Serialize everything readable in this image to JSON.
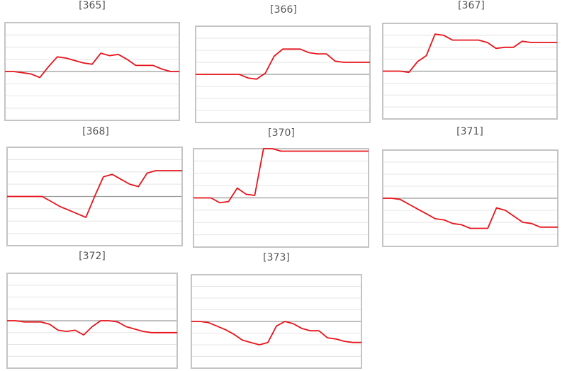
{
  "chart_data": [
    {
      "type": "line",
      "title": "[365]",
      "x": [
        0,
        1,
        2,
        3,
        4,
        5,
        6,
        7,
        8,
        9,
        10,
        11,
        12,
        13,
        14,
        15,
        16,
        17,
        18,
        19,
        20
      ],
      "xlim": [
        0,
        20
      ],
      "ylim": [
        -4,
        4
      ],
      "yticks": [
        -3,
        -2,
        -1,
        0,
        1,
        2,
        3
      ],
      "grid": true,
      "color": "#e8141b",
      "values": [
        0,
        0,
        -0.1,
        -0.2,
        -0.5,
        0.4,
        1.2,
        1.1,
        0.9,
        0.7,
        0.6,
        1.5,
        1.3,
        1.4,
        1,
        0.5,
        0.5,
        0.5,
        0.2,
        0,
        0
      ]
    },
    {
      "type": "line",
      "title": "[366]",
      "x": [
        0,
        1,
        2,
        3,
        4,
        5,
        6,
        7,
        8,
        9,
        10,
        11,
        12,
        13,
        14,
        15,
        16,
        17,
        18,
        19,
        20
      ],
      "xlim": [
        0,
        20
      ],
      "ylim": [
        -4,
        4
      ],
      "yticks": [
        -3,
        -2,
        -1,
        0,
        1,
        2,
        3
      ],
      "grid": true,
      "color": "#e8141b",
      "values": [
        0,
        0,
        0,
        0,
        0,
        0,
        -0.3,
        -0.4,
        0.1,
        1.5,
        2.1,
        2.1,
        2.1,
        1.8,
        1.7,
        1.7,
        1.1,
        1.0,
        1.0,
        1.0,
        1.0
      ]
    },
    {
      "type": "line",
      "title": "[367]",
      "x": [
        0,
        1,
        2,
        3,
        4,
        5,
        6,
        7,
        8,
        9,
        10,
        11,
        12,
        13,
        14,
        15,
        16,
        17,
        18,
        19,
        20
      ],
      "xlim": [
        0,
        20
      ],
      "ylim": [
        -4,
        4
      ],
      "yticks": [
        -3,
        -2,
        -1,
        0,
        1,
        2,
        3
      ],
      "grid": true,
      "color": "#e8141b",
      "values": [
        0,
        0,
        0,
        -0.1,
        0.8,
        1.3,
        3.1,
        3.0,
        2.6,
        2.6,
        2.6,
        2.6,
        2.4,
        1.9,
        2.0,
        2.0,
        2.5,
        2.4,
        2.4,
        2.4,
        2.4
      ]
    },
    {
      "type": "line",
      "title": "[368]",
      "x": [
        0,
        1,
        2,
        3,
        4,
        5,
        6,
        7,
        8,
        9,
        10,
        11,
        12,
        13,
        14,
        15,
        16,
        17,
        18,
        19,
        20
      ],
      "xlim": [
        0,
        20
      ],
      "ylim": [
        -4,
        4
      ],
      "yticks": [
        -3,
        -2,
        -1,
        0,
        1,
        2,
        3
      ],
      "grid": true,
      "color": "#e8141b",
      "values": [
        0,
        0,
        0,
        0,
        0,
        -0.4,
        -0.8,
        -1.1,
        -1.4,
        -1.7,
        0,
        1.6,
        1.8,
        1.4,
        1.0,
        0.8,
        1.9,
        2.1,
        2.1,
        2.1,
        2.1
      ]
    },
    {
      "type": "line",
      "title": "[370]",
      "x": [
        0,
        1,
        2,
        3,
        4,
        5,
        6,
        7,
        8,
        9,
        10,
        11,
        12,
        13,
        14,
        15,
        16,
        17,
        18,
        19,
        20
      ],
      "xlim": [
        0,
        20
      ],
      "ylim": [
        -4,
        4
      ],
      "yticks": [
        -3,
        -2,
        -1,
        0,
        1,
        2,
        3
      ],
      "grid": true,
      "color": "#e8141b",
      "values": [
        0,
        0,
        0,
        -0.4,
        -0.3,
        0.8,
        0.3,
        0.2,
        4,
        4,
        3.8,
        3.8,
        3.8,
        3.8,
        3.8,
        3.8,
        3.8,
        3.8,
        3.8,
        3.8,
        3.8
      ]
    },
    {
      "type": "line",
      "title": "[371]",
      "x": [
        0,
        1,
        2,
        3,
        4,
        5,
        6,
        7,
        8,
        9,
        10,
        11,
        12,
        13,
        14,
        15,
        16,
        17,
        18,
        19,
        20
      ],
      "xlim": [
        0,
        20
      ],
      "ylim": [
        -4,
        4
      ],
      "yticks": [
        -3,
        -2,
        -1,
        0,
        1,
        2,
        3
      ],
      "grid": true,
      "color": "#e8141b",
      "values": [
        0,
        0,
        -0.1,
        -0.5,
        -0.9,
        -1.3,
        -1.7,
        -1.8,
        -2.1,
        -2.2,
        -2.5,
        -2.5,
        -2.5,
        -0.8,
        -1.0,
        -1.5,
        -2.0,
        -2.1,
        -2.4,
        -2.4,
        -2.4
      ]
    },
    {
      "type": "line",
      "title": "[372]",
      "x": [
        0,
        1,
        2,
        3,
        4,
        5,
        6,
        7,
        8,
        9,
        10,
        11,
        12,
        13,
        14,
        15,
        16,
        17,
        18,
        19,
        20
      ],
      "xlim": [
        0,
        20
      ],
      "ylim": [
        -4,
        4
      ],
      "yticks": [
        -3,
        -2,
        -1,
        0,
        1,
        2,
        3
      ],
      "grid": true,
      "color": "#e8141b",
      "values": [
        0,
        0,
        -0.1,
        -0.1,
        -0.1,
        -0.3,
        -0.8,
        -0.9,
        -0.8,
        -1.2,
        -0.5,
        0,
        0,
        -0.1,
        -0.5,
        -0.7,
        -0.9,
        -1.0,
        -1.0,
        -1.0,
        -1.0
      ]
    },
    {
      "type": "line",
      "title": "[373]",
      "x": [
        0,
        1,
        2,
        3,
        4,
        5,
        6,
        7,
        8,
        9,
        10,
        11,
        12,
        13,
        14,
        15,
        16,
        17,
        18,
        19,
        20
      ],
      "xlim": [
        0,
        20
      ],
      "ylim": [
        -4,
        4
      ],
      "yticks": [
        -3,
        -2,
        -1,
        0,
        1,
        2,
        3
      ],
      "grid": true,
      "color": "#e8141b",
      "values": [
        0,
        0,
        -0.1,
        -0.4,
        -0.7,
        -1.1,
        -1.6,
        -1.8,
        -2.0,
        -1.8,
        -0.4,
        0,
        -0.2,
        -0.6,
        -0.8,
        -0.8,
        -1.4,
        -1.5,
        -1.7,
        -1.8,
        -1.8
      ]
    }
  ]
}
